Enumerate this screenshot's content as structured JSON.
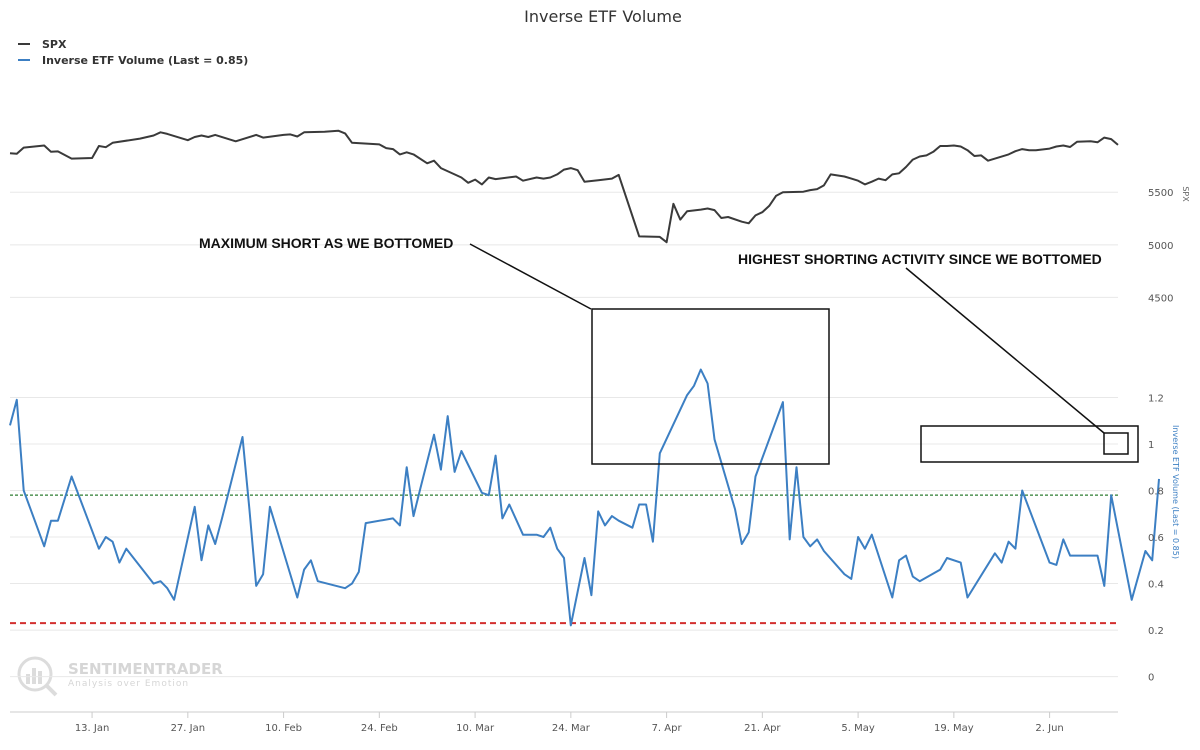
{
  "chart_data": {
    "type": "line",
    "title": "Inverse ETF Volume",
    "legend": {
      "placement": "top-left",
      "entries": [
        "SPX",
        "Inverse ETF Volume (Last = 0.85)"
      ]
    },
    "x_axis": {
      "tick_labels": [
        "13. Jan",
        "27. Jan",
        "10. Feb",
        "24. Feb",
        "10. Mar",
        "24. Mar",
        "7. Apr",
        "21. Apr",
        "5. May",
        "19. May",
        "2. Jun"
      ],
      "tick_days": [
        12,
        26,
        40,
        54,
        68,
        82,
        96,
        110,
        124,
        138,
        152
      ],
      "range_days": [
        0,
        162
      ]
    },
    "spx_axis": {
      "label": "SPX",
      "ticks": [
        4500,
        5000,
        5500
      ],
      "range": [
        4380,
        6520
      ]
    },
    "volume_axis": {
      "label": "Inverse ETF Volume (Last = 0.85)",
      "ticks": [
        0,
        0.2,
        0.4,
        0.6,
        0.8,
        1,
        1.2
      ],
      "tick_labels": [
        "0",
        "0.2",
        "0.4",
        "0.6",
        "0.8",
        "1",
        "1.2"
      ],
      "range": [
        -0.135,
        1.49
      ]
    },
    "reference_lines": [
      {
        "value": 0.78,
        "color": "#2e7d32",
        "style": "dashed",
        "axis": "volume"
      },
      {
        "value": 0.23,
        "color": "#d32f2f",
        "style": "dashed",
        "axis": "volume"
      }
    ],
    "series": [
      {
        "name": "SPX",
        "color": "#3a3a3a",
        "axis": "spx",
        "points": [
          [
            0,
            5870
          ],
          [
            1,
            5866
          ],
          [
            2,
            5925
          ],
          [
            5,
            5945
          ],
          [
            6,
            5885
          ],
          [
            7,
            5888
          ],
          [
            9,
            5820
          ],
          [
            12,
            5826
          ],
          [
            13,
            5940
          ],
          [
            14,
            5928
          ],
          [
            15,
            5970
          ],
          [
            19,
            6010
          ],
          [
            21,
            6040
          ],
          [
            22,
            6070
          ],
          [
            23,
            6055
          ],
          [
            26,
            5995
          ],
          [
            27,
            6025
          ],
          [
            28,
            6040
          ],
          [
            29,
            6025
          ],
          [
            30,
            6045
          ],
          [
            33,
            5985
          ],
          [
            36,
            6045
          ],
          [
            37,
            6020
          ],
          [
            40,
            6045
          ],
          [
            41,
            6050
          ],
          [
            42,
            6030
          ],
          [
            43,
            6070
          ],
          [
            46,
            6075
          ],
          [
            48,
            6085
          ],
          [
            49,
            6060
          ],
          [
            50,
            5970
          ],
          [
            54,
            5955
          ],
          [
            55,
            5920
          ],
          [
            56,
            5910
          ],
          [
            57,
            5860
          ],
          [
            58,
            5880
          ],
          [
            59,
            5860
          ],
          [
            61,
            5775
          ],
          [
            62,
            5800
          ],
          [
            63,
            5730
          ],
          [
            65,
            5670
          ],
          [
            66,
            5640
          ],
          [
            67,
            5590
          ],
          [
            68,
            5620
          ],
          [
            69,
            5575
          ],
          [
            70,
            5640
          ],
          [
            71,
            5625
          ],
          [
            74,
            5650
          ],
          [
            75,
            5610
          ],
          [
            77,
            5640
          ],
          [
            78,
            5630
          ],
          [
            79,
            5640
          ],
          [
            80,
            5670
          ],
          [
            81,
            5715
          ],
          [
            82,
            5730
          ],
          [
            83,
            5710
          ],
          [
            84,
            5600
          ],
          [
            86,
            5615
          ],
          [
            88,
            5630
          ],
          [
            89,
            5665
          ],
          [
            92,
            5080
          ],
          [
            95,
            5075
          ],
          [
            96,
            5025
          ],
          [
            97,
            5390
          ],
          [
            98,
            5240
          ],
          [
            99,
            5320
          ],
          [
            101,
            5335
          ],
          [
            102,
            5345
          ],
          [
            103,
            5330
          ],
          [
            104,
            5255
          ],
          [
            105,
            5265
          ],
          [
            107,
            5220
          ],
          [
            108,
            5205
          ],
          [
            109,
            5280
          ],
          [
            110,
            5310
          ],
          [
            111,
            5370
          ],
          [
            112,
            5465
          ],
          [
            113,
            5500
          ],
          [
            116,
            5505
          ],
          [
            117,
            5520
          ],
          [
            118,
            5530
          ],
          [
            119,
            5565
          ],
          [
            120,
            5670
          ],
          [
            122,
            5650
          ],
          [
            123,
            5630
          ],
          [
            124,
            5610
          ],
          [
            125,
            5575
          ],
          [
            126,
            5600
          ],
          [
            127,
            5630
          ],
          [
            128,
            5615
          ],
          [
            129,
            5670
          ],
          [
            130,
            5680
          ],
          [
            131,
            5740
          ],
          [
            132,
            5810
          ],
          [
            133,
            5840
          ],
          [
            134,
            5850
          ],
          [
            135,
            5885
          ],
          [
            136,
            5940
          ],
          [
            137,
            5940
          ],
          [
            138,
            5945
          ],
          [
            139,
            5935
          ],
          [
            140,
            5900
          ],
          [
            141,
            5845
          ],
          [
            142,
            5850
          ],
          [
            143,
            5800
          ],
          [
            146,
            5860
          ],
          [
            147,
            5890
          ],
          [
            148,
            5910
          ],
          [
            149,
            5900
          ],
          [
            150,
            5900
          ],
          [
            152,
            5915
          ],
          [
            153,
            5935
          ],
          [
            154,
            5945
          ],
          [
            155,
            5930
          ],
          [
            156,
            5980
          ],
          [
            158,
            5985
          ],
          [
            159,
            5975
          ],
          [
            160,
            6020
          ],
          [
            161,
            6005
          ],
          [
            162,
            5950
          ]
        ]
      },
      {
        "name": "Inverse ETF Volume (Last = 0.85)",
        "color": "#3c7fc3",
        "axis": "volume",
        "points": [
          [
            0,
            1.08
          ],
          [
            1,
            1.19
          ],
          [
            2,
            0.8
          ],
          [
            5,
            0.56
          ],
          [
            6,
            0.67
          ],
          [
            7,
            0.67
          ],
          [
            9,
            0.86
          ],
          [
            13,
            0.55
          ],
          [
            14,
            0.6
          ],
          [
            15,
            0.58
          ],
          [
            16,
            0.49
          ],
          [
            17,
            0.55
          ],
          [
            21,
            0.4
          ],
          [
            22,
            0.41
          ],
          [
            23,
            0.38
          ],
          [
            24,
            0.33
          ],
          [
            27,
            0.73
          ],
          [
            28,
            0.5
          ],
          [
            29,
            0.65
          ],
          [
            30,
            0.57
          ],
          [
            31,
            0.68
          ],
          [
            34,
            1.03
          ],
          [
            35,
            0.72
          ],
          [
            36,
            0.39
          ],
          [
            37,
            0.44
          ],
          [
            38,
            0.73
          ],
          [
            42,
            0.34
          ],
          [
            43,
            0.46
          ],
          [
            44,
            0.5
          ],
          [
            45,
            0.41
          ],
          [
            49,
            0.38
          ],
          [
            50,
            0.4
          ],
          [
            51,
            0.45
          ],
          [
            52,
            0.66
          ],
          [
            56,
            0.68
          ],
          [
            57,
            0.65
          ],
          [
            58,
            0.9
          ],
          [
            59,
            0.69
          ],
          [
            60,
            0.81
          ],
          [
            62,
            1.04
          ],
          [
            63,
            0.89
          ],
          [
            64,
            1.12
          ],
          [
            65,
            0.88
          ],
          [
            66,
            0.97
          ],
          [
            69,
            0.79
          ],
          [
            70,
            0.78
          ],
          [
            71,
            0.95
          ],
          [
            72,
            0.68
          ],
          [
            73,
            0.74
          ],
          [
            75,
            0.61
          ],
          [
            76,
            0.61
          ],
          [
            77,
            0.61
          ],
          [
            78,
            0.6
          ],
          [
            79,
            0.64
          ],
          [
            80,
            0.55
          ],
          [
            81,
            0.51
          ],
          [
            82,
            0.22
          ],
          [
            84,
            0.51
          ],
          [
            85,
            0.35
          ],
          [
            86,
            0.71
          ],
          [
            87,
            0.65
          ],
          [
            88,
            0.69
          ],
          [
            89,
            0.67
          ],
          [
            91,
            0.64
          ],
          [
            92,
            0.74
          ],
          [
            93,
            0.74
          ],
          [
            94,
            0.58
          ],
          [
            95,
            0.96
          ],
          [
            99,
            1.21
          ],
          [
            100,
            1.25
          ],
          [
            101,
            1.32
          ],
          [
            102,
            1.26
          ],
          [
            103,
            1.02
          ],
          [
            106,
            0.72
          ],
          [
            107,
            0.57
          ],
          [
            108,
            0.62
          ],
          [
            109,
            0.86
          ],
          [
            113,
            1.18
          ],
          [
            114,
            0.59
          ],
          [
            115,
            0.9
          ],
          [
            116,
            0.6
          ],
          [
            117,
            0.56
          ],
          [
            118,
            0.59
          ],
          [
            119,
            0.54
          ],
          [
            122,
            0.44
          ],
          [
            123,
            0.42
          ],
          [
            124,
            0.6
          ],
          [
            125,
            0.55
          ],
          [
            126,
            0.61
          ],
          [
            129,
            0.34
          ],
          [
            130,
            0.5
          ],
          [
            131,
            0.52
          ],
          [
            132,
            0.43
          ],
          [
            133,
            0.41
          ],
          [
            136,
            0.46
          ],
          [
            137,
            0.51
          ],
          [
            139,
            0.49
          ],
          [
            140,
            0.34
          ],
          [
            144,
            0.53
          ],
          [
            145,
            0.49
          ],
          [
            146,
            0.58
          ],
          [
            147,
            0.55
          ],
          [
            148,
            0.8
          ],
          [
            152,
            0.49
          ],
          [
            153,
            0.48
          ],
          [
            154,
            0.59
          ],
          [
            155,
            0.52
          ],
          [
            159,
            0.52
          ],
          [
            160,
            0.39
          ],
          [
            161,
            0.78
          ],
          [
            164,
            0.33
          ],
          [
            166,
            0.54
          ],
          [
            167,
            0.5
          ],
          [
            168,
            0.85
          ]
        ]
      }
    ],
    "annotations": [
      {
        "text": "MAXIMUM SHORT AS WE BOTTOMED"
      },
      {
        "text": "HIGHEST SHORTING ACTIVITY SINCE WE BOTTOMED"
      }
    ],
    "watermark": {
      "name": "SENTIMENTRADER",
      "tagline": "Analysis over Emotion"
    }
  }
}
